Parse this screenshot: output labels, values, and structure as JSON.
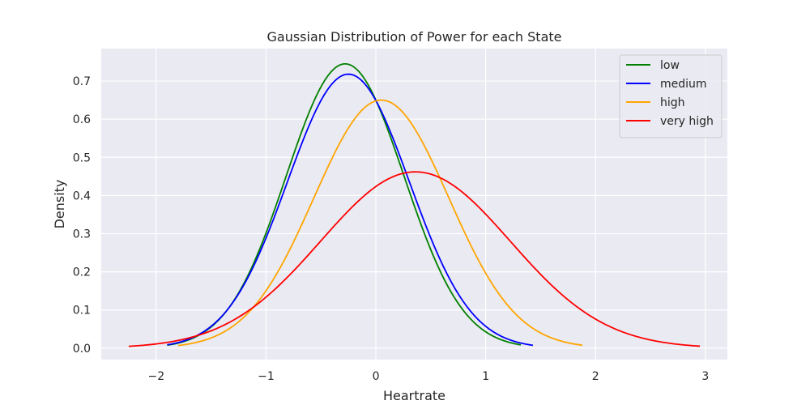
{
  "chart_data": {
    "type": "line",
    "title": "Gaussian Distribution of Power for each State",
    "xlabel": "Heartrate",
    "ylabel": "Density",
    "xlim": [
      -2.5,
      3.2
    ],
    "ylim": [
      -0.03,
      0.785
    ],
    "xticks": [
      -2,
      -1,
      0,
      1,
      2,
      3
    ],
    "xtick_labels": [
      "−2",
      "−1",
      "0",
      "1",
      "2",
      "3"
    ],
    "yticks": [
      0.0,
      0.1,
      0.2,
      0.3,
      0.4,
      0.5,
      0.6,
      0.7
    ],
    "ytick_labels": [
      "0.0",
      "0.1",
      "0.2",
      "0.3",
      "0.4",
      "0.5",
      "0.6",
      "0.7"
    ],
    "grid": true,
    "legend_position": "top-right",
    "background_color": "#eaeaf2",
    "series": [
      {
        "name": "low",
        "color": "#008000",
        "mean": -0.28,
        "peak": 0.745,
        "x_start": -1.9,
        "x_end": 1.32
      },
      {
        "name": "medium",
        "color": "#0000ff",
        "mean": -0.25,
        "peak": 0.718,
        "x_start": -1.9,
        "x_end": 1.43
      },
      {
        "name": "high",
        "color": "#ffa500",
        "mean": 0.05,
        "peak": 0.65,
        "x_start": -1.8,
        "x_end": 1.88
      },
      {
        "name": "very high",
        "color": "#ff0000",
        "mean": 0.36,
        "peak": 0.462,
        "x_start": -2.25,
        "x_end": 2.95
      }
    ]
  }
}
